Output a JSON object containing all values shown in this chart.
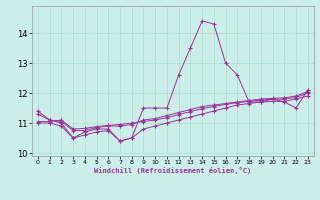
{
  "xlabel": "Windchill (Refroidissement éolien,°C)",
  "background_color": "#cceee8",
  "grid_color": "#aaddcc",
  "line_color": "#993399",
  "x": [
    0,
    1,
    2,
    3,
    4,
    5,
    6,
    7,
    8,
    9,
    10,
    11,
    12,
    13,
    14,
    15,
    16,
    17,
    18,
    19,
    20,
    21,
    22,
    23
  ],
  "series1": [
    11.4,
    11.1,
    11.0,
    10.5,
    10.7,
    10.8,
    10.8,
    10.4,
    10.5,
    11.5,
    11.5,
    11.5,
    12.6,
    13.5,
    14.4,
    14.3,
    13.0,
    12.6,
    11.7,
    11.7,
    11.8,
    11.7,
    11.5,
    12.1
  ],
  "series2": [
    11.3,
    11.1,
    11.05,
    10.75,
    10.75,
    10.85,
    10.9,
    10.9,
    10.95,
    11.1,
    11.15,
    11.25,
    11.35,
    11.45,
    11.55,
    11.6,
    11.65,
    11.7,
    11.75,
    11.8,
    11.82,
    11.84,
    11.9,
    12.05
  ],
  "series3": [
    11.0,
    11.0,
    10.9,
    10.5,
    10.6,
    10.7,
    10.75,
    10.4,
    10.5,
    10.8,
    10.9,
    11.0,
    11.1,
    11.2,
    11.3,
    11.4,
    11.5,
    11.6,
    11.65,
    11.7,
    11.72,
    11.72,
    11.8,
    11.9
  ],
  "series4": [
    11.05,
    11.05,
    11.1,
    10.8,
    10.82,
    10.88,
    10.92,
    10.95,
    11.0,
    11.05,
    11.1,
    11.18,
    11.28,
    11.38,
    11.48,
    11.55,
    11.62,
    11.68,
    11.72,
    11.76,
    11.79,
    11.8,
    11.85,
    12.0
  ],
  "ylim": [
    9.9,
    14.9
  ],
  "yticks": [
    10,
    11,
    12,
    13,
    14
  ],
  "xlim": [
    -0.5,
    23.5
  ]
}
